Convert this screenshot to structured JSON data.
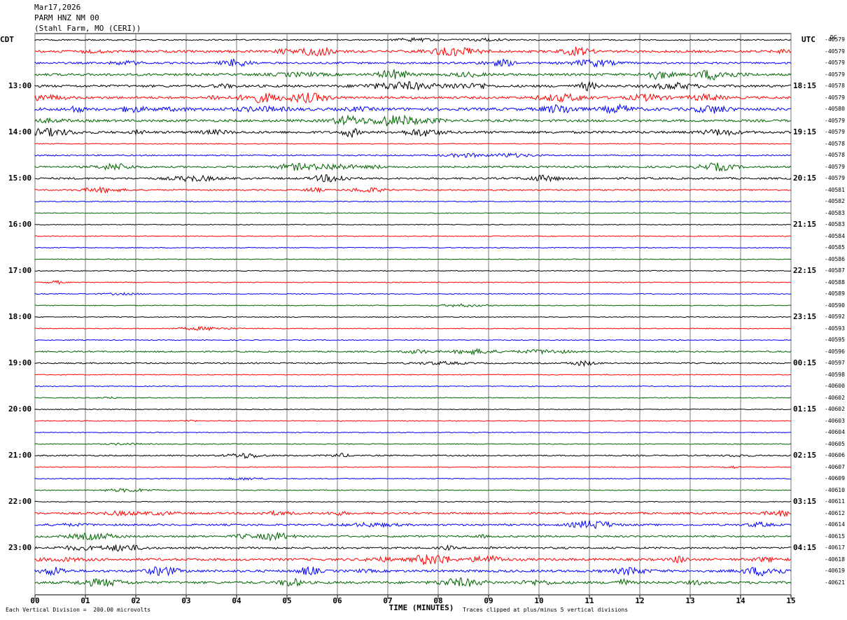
{
  "header": {
    "date": "Mar17,2026",
    "station": "PARM HNZ NM 00",
    "location": "(Stahl Farm, MO (CERI))"
  },
  "left_axis_label": "CDT",
  "right_axis_label": "UTC",
  "dc_header": "DC",
  "footer": {
    "scale": "Each Vertical Division =  200.00 microvolts",
    "xlabel": "TIME (MINUTES)",
    "clip_note": "Traces clipped at plus/minus 5 vertical divisions"
  },
  "chart_data": {
    "type": "line",
    "title": "",
    "xlabel": "TIME (MINUTES)",
    "x_ticks": [
      "00",
      "01",
      "02",
      "03",
      "04",
      "05",
      "06",
      "07",
      "08",
      "09",
      "10",
      "11",
      "12",
      "13",
      "14",
      "15"
    ],
    "xlim": [
      0,
      15
    ],
    "left_ticks": [
      "13:00",
      "14:00",
      "15:00",
      "16:00",
      "17:00",
      "18:00",
      "19:00",
      "20:00",
      "21:00",
      "22:00",
      "23:00"
    ],
    "right_ticks": [
      "18:15",
      "19:15",
      "20:15",
      "21:15",
      "22:15",
      "23:15",
      "00:15",
      "01:15",
      "02:15",
      "03:15",
      "04:15"
    ],
    "tick_first_row": 4,
    "tick_every_rows": 4,
    "trace_colors": [
      "#000000",
      "#ff0000",
      "#0000ff",
      "#006400"
    ],
    "grid": true,
    "dc_offsets": [
      "-40579",
      "-40579",
      "-40579",
      "-40579",
      "-40578",
      "-40579",
      "-40580",
      "-40579",
      "-40579",
      "-40578",
      "-40578",
      "-40579",
      "-40579",
      "-40581",
      "-40582",
      "-40583",
      "-40583",
      "-40584",
      "-40585",
      "-40586",
      "-40587",
      "-40588",
      "-40589",
      "-40590",
      "-40592",
      "-40593",
      "-40595",
      "-40596",
      "-40597",
      "-40598",
      "-40600",
      "-40602",
      "-40602",
      "-40603",
      "-40604",
      "-40605",
      "-40606",
      "-40607",
      "-40609",
      "-40610",
      "-40611",
      "-40612",
      "-40614",
      "-40615",
      "-40617",
      "-40618",
      "-40619",
      "-40621"
    ],
    "activity_level": [
      2,
      4,
      3,
      4,
      4,
      4,
      5,
      4,
      4,
      1,
      2,
      3,
      3,
      2,
      1,
      1,
      1,
      1,
      1,
      1,
      1,
      1,
      1,
      1,
      1,
      1,
      1,
      2,
      2,
      1,
      1,
      1,
      1,
      1,
      1,
      1,
      2,
      1,
      1,
      1,
      1,
      3,
      3,
      3,
      3,
      4,
      4,
      4
    ]
  }
}
